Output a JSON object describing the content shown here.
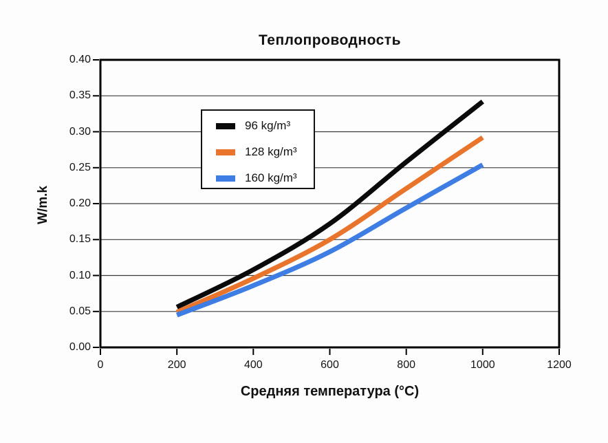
{
  "chart_data": {
    "type": "line",
    "title": "Теплопроводность",
    "xlabel": "Средняя температура (°C)",
    "ylabel": "W/m.k",
    "xlim": [
      0,
      1200
    ],
    "ylim": [
      0,
      0.4
    ],
    "x_ticks": [
      0,
      200,
      400,
      600,
      800,
      1000,
      1200
    ],
    "y_ticks": [
      0.0,
      0.05,
      0.1,
      0.15,
      0.2,
      0.25,
      0.3,
      0.35,
      0.4
    ],
    "grid": "horizontal",
    "legend_position": "upper-left-inside",
    "x": [
      200,
      400,
      600,
      800,
      1000
    ],
    "series": [
      {
        "name": "96 kg/m³",
        "color": "#0a0a0a",
        "values": [
          0.056,
          0.108,
          0.172,
          0.258,
          0.342
        ]
      },
      {
        "name": "128 kg/m³",
        "color": "#e8752b",
        "values": [
          0.049,
          0.096,
          0.15,
          0.221,
          0.292
        ]
      },
      {
        "name": "160 kg/m³",
        "color": "#3e7de4",
        "values": [
          0.045,
          0.086,
          0.133,
          0.194,
          0.254
        ]
      }
    ],
    "style": {
      "gridline_color": "#3c3c3c",
      "axis_color": "#000000",
      "line_width": 7
    }
  }
}
